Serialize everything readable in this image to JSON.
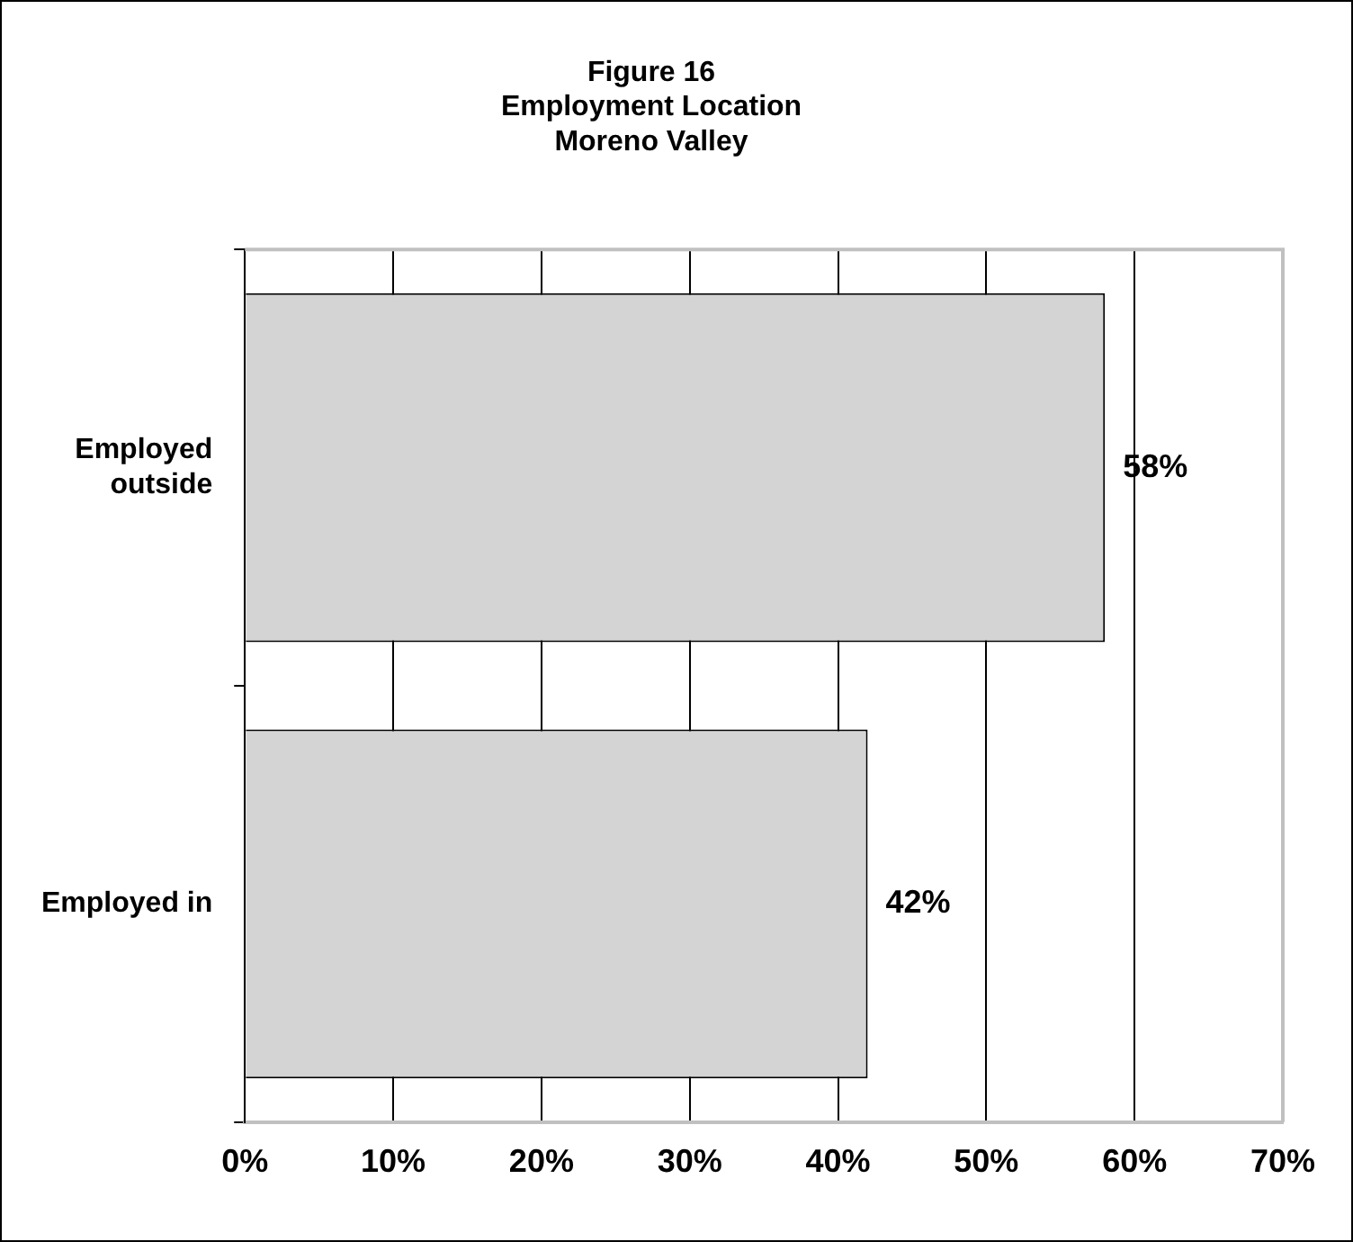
{
  "chart_data": {
    "type": "bar",
    "orientation": "horizontal",
    "title": "Figure 16\nEmployment Location\nMoreno Valley",
    "categories": [
      "Employed outside",
      "Employed in"
    ],
    "values": [
      58,
      42
    ],
    "color": "#d4d4d4",
    "value_labels": [
      "58%",
      "42%"
    ],
    "xlim": [
      0,
      70
    ],
    "xticks": [
      {
        "value": 0,
        "label": "0%"
      },
      {
        "value": 10,
        "label": "10%"
      },
      {
        "value": 20,
        "label": "20%"
      },
      {
        "value": 30,
        "label": "30%"
      },
      {
        "value": 40,
        "label": "40%"
      },
      {
        "value": 50,
        "label": "50%"
      },
      {
        "value": 60,
        "label": "60%"
      },
      {
        "value": 70,
        "label": "70%"
      }
    ],
    "grid": "x",
    "legend": false
  }
}
